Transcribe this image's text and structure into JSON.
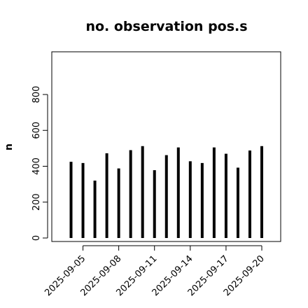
{
  "chart_data": {
    "type": "bar",
    "title": "no. observation pos.s",
    "ylabel": "n",
    "xlabel": "",
    "ylim": [
      0,
      920
    ],
    "yticks": [
      0,
      200,
      400,
      600,
      800
    ],
    "categories": [
      "2025-09-04",
      "2025-09-05",
      "2025-09-06",
      "2025-09-07",
      "2025-09-08",
      "2025-09-09",
      "2025-09-10",
      "2025-09-11",
      "2025-09-12",
      "2025-09-13",
      "2025-09-14",
      "2025-09-15",
      "2025-09-16",
      "2025-09-17",
      "2025-09-18",
      "2025-09-19",
      "2025-09-20"
    ],
    "values": [
      425,
      418,
      320,
      472,
      388,
      490,
      512,
      378,
      462,
      505,
      428,
      418,
      505,
      470,
      392,
      488,
      512
    ],
    "xtick_labels": [
      "2025-09-05",
      "2025-09-08",
      "2025-09-11",
      "2025-09-14",
      "2025-09-17",
      "2025-09-20"
    ],
    "highlight_label": "2025-09-11",
    "colors": {
      "bar": "#000000",
      "axis": "#000000",
      "highlight_label": "#228B22"
    },
    "grid": false,
    "legend": "none"
  }
}
